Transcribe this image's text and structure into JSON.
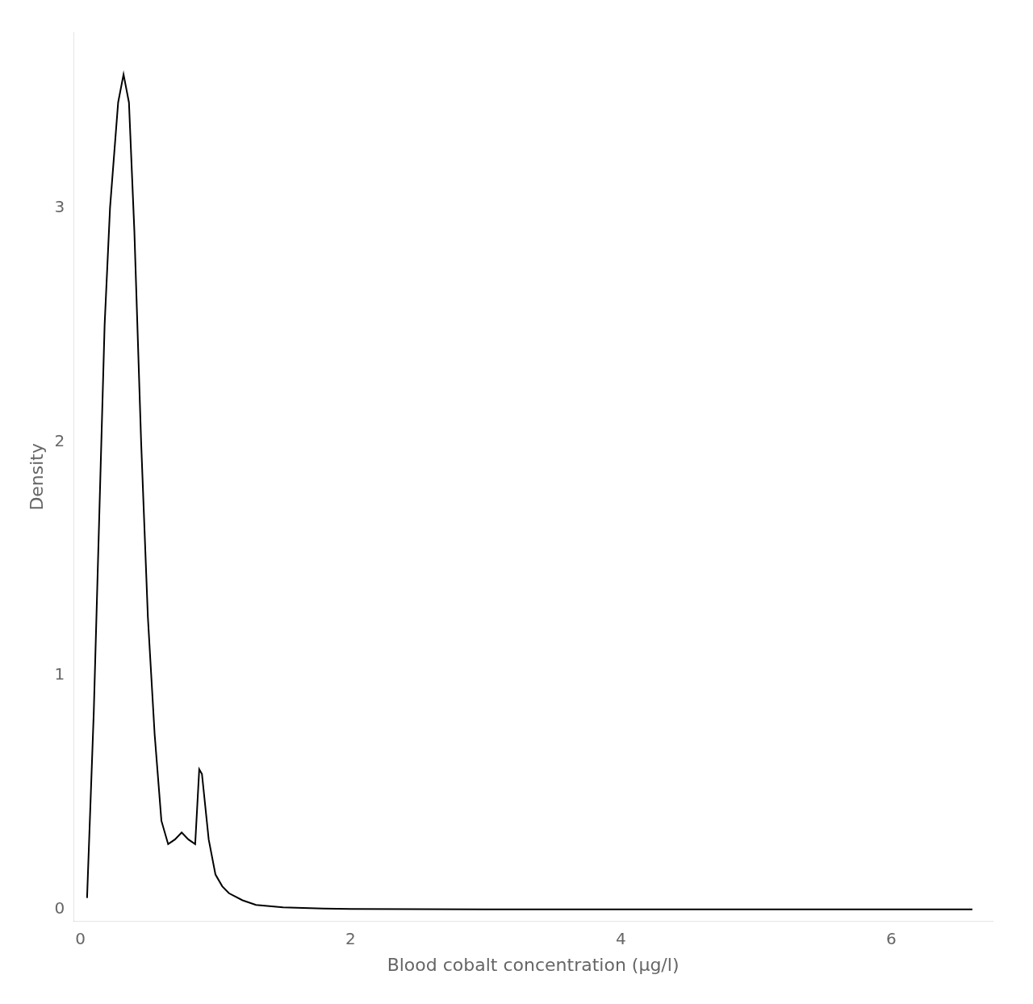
{
  "chart_data": {
    "type": "line",
    "xlabel": "Blood cobalt concentration (μg/l)",
    "ylabel": "Density",
    "xlim": [
      -0.05,
      6.75
    ],
    "ylim": [
      -0.05,
      3.75
    ],
    "xticks": [
      0,
      2,
      4,
      6
    ],
    "yticks": [
      0,
      1,
      2,
      3
    ],
    "grid": false,
    "color": "#000000",
    "x": [
      0.05,
      0.1,
      0.18,
      0.22,
      0.28,
      0.32,
      0.36,
      0.4,
      0.45,
      0.5,
      0.55,
      0.6,
      0.65,
      0.7,
      0.75,
      0.8,
      0.85,
      0.88,
      0.9,
      0.95,
      1.0,
      1.05,
      1.1,
      1.2,
      1.3,
      1.4,
      1.5,
      1.6,
      1.8,
      2.0,
      2.5,
      3.0,
      4.0,
      5.0,
      6.0,
      6.6
    ],
    "values": [
      0.05,
      0.85,
      2.5,
      3.0,
      3.45,
      3.57,
      3.45,
      2.9,
      2.0,
      1.25,
      0.75,
      0.38,
      0.28,
      0.3,
      0.33,
      0.3,
      0.28,
      0.6,
      0.58,
      0.3,
      0.15,
      0.1,
      0.07,
      0.04,
      0.02,
      0.015,
      0.01,
      0.008,
      0.005,
      0.003,
      0.002,
      0.001,
      0.001,
      0.001,
      0.001,
      0.001
    ]
  }
}
